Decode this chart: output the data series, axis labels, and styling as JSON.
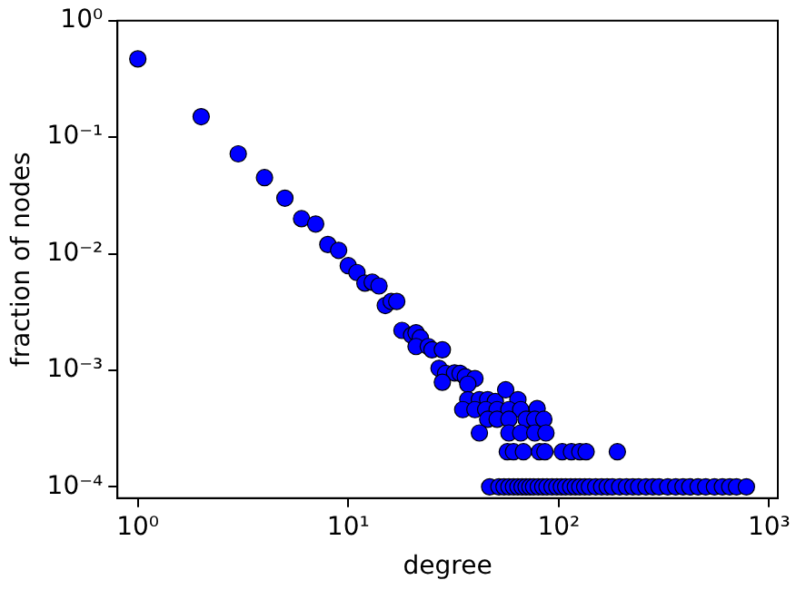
{
  "chart_data": {
    "type": "scatter",
    "xlabel": "degree",
    "ylabel": "fraction of nodes",
    "log": "xy",
    "marker": "circle",
    "grid": false,
    "legend": false,
    "xlim": [
      0.8,
      1100
    ],
    "ylim": [
      8e-05,
      1
    ],
    "xticks": [
      {
        "value": 1,
        "label": "10⁰"
      },
      {
        "value": 10,
        "label": "10¹"
      },
      {
        "value": 100,
        "label": "10²"
      },
      {
        "value": 1000,
        "label": "10³"
      }
    ],
    "yticks": [
      {
        "value": 0.0001,
        "label": "10⁻⁴"
      },
      {
        "value": 0.001,
        "label": "10⁻³"
      },
      {
        "value": 0.01,
        "label": "10⁻²"
      },
      {
        "value": 0.1,
        "label": "10⁻¹"
      },
      {
        "value": 1,
        "label": "10⁰"
      }
    ],
    "series": [
      {
        "color": "#0000ff",
        "x": [
          1,
          2,
          3,
          4,
          5,
          6,
          7,
          8,
          9,
          10,
          11,
          12,
          13,
          14,
          15,
          16,
          17,
          18,
          20,
          21,
          22,
          21,
          24,
          25,
          28,
          27,
          29,
          32,
          34,
          36,
          40,
          28,
          37,
          37,
          42,
          46,
          50,
          56,
          64,
          35,
          40,
          45,
          51,
          58,
          66,
          79,
          46,
          51,
          58,
          70,
          77,
          85,
          42,
          58,
          66,
          77,
          87,
          57,
          61,
          68,
          81,
          86,
          104,
          115,
          126,
          135,
          190,
          47,
          52,
          55,
          58,
          61,
          64,
          67,
          70,
          73,
          76,
          80,
          84,
          88,
          93,
          98,
          103,
          108,
          114,
          120,
          126,
          133,
          140,
          150,
          160,
          170,
          180,
          195,
          210,
          225,
          240,
          260,
          280,
          300,
          330,
          360,
          390,
          420,
          460,
          500,
          550,
          600,
          650,
          700,
          780
        ],
        "values": [
          0.47,
          0.15,
          0.072,
          0.045,
          0.03,
          0.02,
          0.018,
          0.012,
          0.0107,
          0.0079,
          0.0069,
          0.0056,
          0.0057,
          0.0053,
          0.0036,
          0.0039,
          0.0039,
          0.0022,
          0.002,
          0.0021,
          0.0019,
          0.0016,
          0.0016,
          0.0015,
          0.0015,
          0.00104,
          0.00094,
          0.00095,
          0.00094,
          0.00088,
          0.00085,
          0.00079,
          0.00076,
          0.00056,
          0.00056,
          0.00056,
          0.00054,
          0.00068,
          0.00056,
          0.00046,
          0.00046,
          0.00046,
          0.00046,
          0.00046,
          0.00046,
          0.00047,
          0.00038,
          0.00038,
          0.00038,
          0.00038,
          0.00038,
          0.00038,
          0.00029,
          0.00029,
          0.00029,
          0.00029,
          0.00029,
          0.0002,
          0.0002,
          0.0002,
          0.0002,
          0.0002,
          0.0002,
          0.0002,
          0.0002,
          0.0002,
          0.0002,
          0.0001,
          0.0001,
          0.0001,
          0.0001,
          0.0001,
          0.0001,
          0.0001,
          0.0001,
          0.0001,
          0.0001,
          0.0001,
          0.0001,
          0.0001,
          0.0001,
          0.0001,
          0.0001,
          0.0001,
          0.0001,
          0.0001,
          0.0001,
          0.0001,
          0.0001,
          0.0001,
          0.0001,
          0.0001,
          0.0001,
          0.0001,
          0.0001,
          0.0001,
          0.0001,
          0.0001,
          0.0001,
          0.0001,
          0.0001,
          0.0001,
          0.0001,
          0.0001,
          0.0001,
          0.0001,
          0.0001,
          0.0001,
          0.0001,
          0.0001,
          0.0001
        ]
      }
    ]
  }
}
